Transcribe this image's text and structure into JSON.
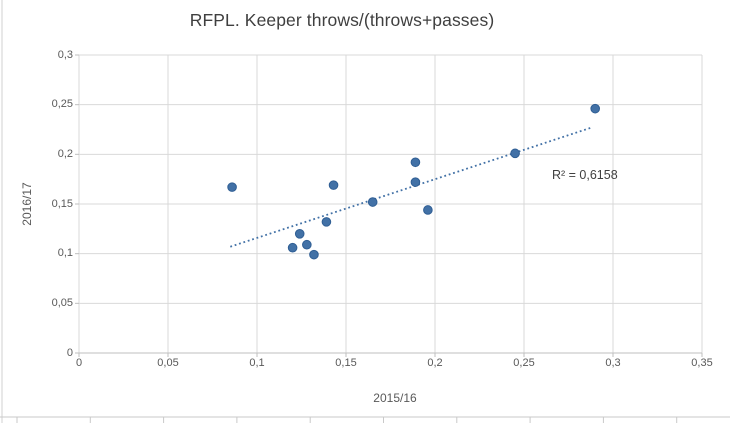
{
  "chart": {
    "title": "RFPL. Keeper throws/(throws+passes)",
    "x_axis_title": "2015/16",
    "y_axis_title": "2016/17",
    "r2_label": "R² = 0,6158",
    "x_tick_labels": [
      "0",
      "0,05",
      "0,1",
      "0,15",
      "0,2",
      "0,25",
      "0,3",
      "0,35"
    ],
    "y_tick_labels": [
      "0,3",
      "0,25",
      "0,2",
      "0,15",
      "0,1",
      "0,05",
      "0"
    ],
    "colors": {
      "marker_fill": "#4271a6",
      "marker_stroke": "#2f5e94",
      "trendline": "#4271a6",
      "gridline": "#d9d9d9",
      "axis_line": "#bfbfbf",
      "tick_text": "#595959",
      "title_text": "#3f3f3f",
      "frame_border": "#d2d2d2",
      "sheet_line": "#c9c9c9"
    }
  },
  "chart_data": {
    "type": "scatter",
    "title": "RFPL. Keeper throws/(throws+passes)",
    "xlabel": "2015/16",
    "ylabel": "2016/17",
    "xlim": [
      0,
      0.35
    ],
    "ylim": [
      0,
      0.3
    ],
    "x_tick_step": 0.05,
    "y_tick_step": 0.05,
    "grid": true,
    "decimal_separator": ",",
    "points": [
      {
        "x": 0.086,
        "y": 0.167
      },
      {
        "x": 0.143,
        "y": 0.169
      },
      {
        "x": 0.165,
        "y": 0.152
      },
      {
        "x": 0.139,
        "y": 0.132
      },
      {
        "x": 0.124,
        "y": 0.12
      },
      {
        "x": 0.12,
        "y": 0.106
      },
      {
        "x": 0.128,
        "y": 0.109
      },
      {
        "x": 0.132,
        "y": 0.099
      },
      {
        "x": 0.189,
        "y": 0.192
      },
      {
        "x": 0.189,
        "y": 0.172
      },
      {
        "x": 0.196,
        "y": 0.144
      },
      {
        "x": 0.245,
        "y": 0.201
      },
      {
        "x": 0.29,
        "y": 0.246
      }
    ],
    "trendline": {
      "style": "dotted",
      "x1": 0.085,
      "y1": 0.107,
      "x2": 0.288,
      "y2": 0.227,
      "r2_text": "R² = 0,6158",
      "r2_value": 0.6158
    }
  }
}
